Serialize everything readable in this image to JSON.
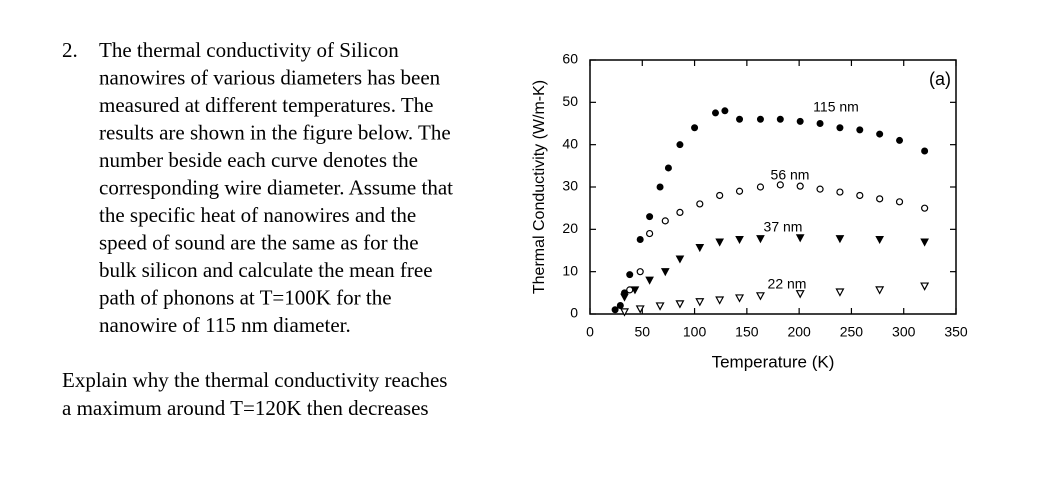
{
  "question": {
    "number": "2.",
    "lines": [
      "The thermal conductivity of  Silicon",
      "nanowires of various diameters  has been",
      "measured at different temperatures. The",
      "results are shown in the figure below. The",
      "number beside each curve denotes the",
      "corresponding wire diameter. Assume that",
      "the specific heat of nanowires  and the",
      "speed of sound are  the same as for the",
      "bulk silicon  and calculate the mean free",
      "path of phonons at T=100K for the",
      "nanowire of 115 nm diameter."
    ]
  },
  "followup": {
    "lines": [
      "Explain why  the thermal conductivity reaches",
      "a maximum around T=120K then decreases"
    ]
  },
  "chart_data": {
    "type": "scatter",
    "annotation": "(a)",
    "x_label": "Temperature (K)",
    "y_label": "Thermal Conductivity (W/m-K)",
    "xlim": [
      0,
      350
    ],
    "ylim": [
      0,
      60
    ],
    "xticks": [
      0,
      50,
      100,
      150,
      200,
      250,
      300,
      350
    ],
    "yticks": [
      0,
      10,
      20,
      30,
      40,
      50,
      60
    ],
    "series": [
      {
        "name": "115 nm",
        "color": "#000000",
        "marker": "filled-circle",
        "x": [
          24,
          29,
          33,
          38,
          48,
          57,
          67,
          75,
          86,
          100,
          120,
          129,
          143,
          163,
          182,
          201,
          220,
          239,
          258,
          277,
          296,
          320
        ],
        "values": [
          1,
          2,
          5,
          9.3,
          17.6,
          23,
          30,
          34.5,
          40,
          44,
          47.5,
          48,
          46,
          46,
          46,
          45.5,
          45,
          44,
          43.5,
          42.5,
          41,
          38.5
        ]
      },
      {
        "name": "56 nm",
        "color": "#000000",
        "marker": "open-circle",
        "x": [
          38,
          48,
          57,
          72,
          86,
          105,
          124,
          143,
          163,
          182,
          201,
          220,
          239,
          258,
          277,
          296,
          320
        ],
        "values": [
          5.7,
          10,
          19,
          22,
          24,
          26,
          28,
          29,
          30,
          30.5,
          30.2,
          29.5,
          28.8,
          28,
          27.2,
          26.5,
          25
        ]
      },
      {
        "name": "37 nm",
        "color": "#000000",
        "marker": "filled-triangle-down",
        "x": [
          33,
          43,
          57,
          72,
          86,
          105,
          124,
          143,
          163,
          201,
          239,
          277,
          320
        ],
        "values": [
          4,
          5.7,
          8,
          10,
          13,
          15.7,
          17,
          17.6,
          17.8,
          18,
          17.8,
          17.6,
          17
        ]
      },
      {
        "name": "22 nm",
        "color": "#000000",
        "marker": "open-triangle-down",
        "x": [
          33,
          48,
          67,
          86,
          105,
          124,
          143,
          163,
          201,
          239,
          277,
          320
        ],
        "values": [
          0.5,
          1.2,
          1.9,
          2.4,
          2.9,
          3.3,
          3.8,
          4.3,
          4.8,
          5.2,
          5.7,
          6.6
        ]
      }
    ]
  }
}
